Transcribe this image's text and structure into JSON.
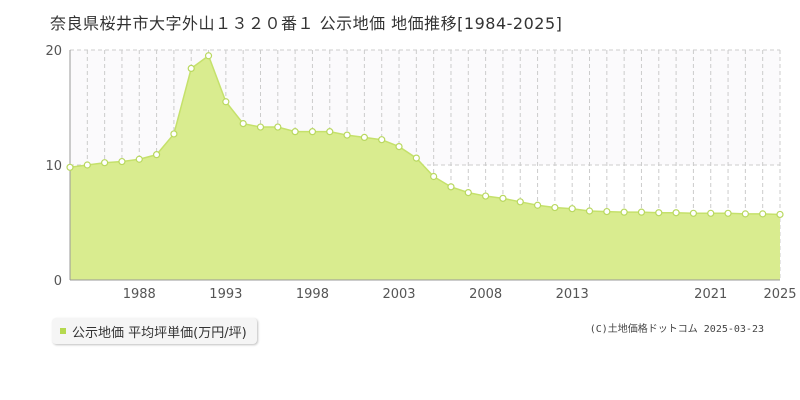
{
  "title": "奈良県桜井市大字外山１３２０番１ 公示地価 地価推移[1984-2025]",
  "legend": {
    "label": "公示地価 平均坪単価(万円/坪)"
  },
  "credit": "(C)土地価格ドットコム 2025-03-23",
  "colors": {
    "area_fill": "#d9ec8f",
    "line": "#c5e16b",
    "marker_fill": "#ffffff",
    "marker_stroke": "#b9d860",
    "grid": "#cccccc",
    "legend_swatch": "#b5d94f"
  },
  "chart_data": {
    "type": "area",
    "x": [
      1984,
      1985,
      1986,
      1987,
      1988,
      1989,
      1990,
      1991,
      1992,
      1993,
      1994,
      1995,
      1996,
      1997,
      1998,
      1999,
      2000,
      2001,
      2002,
      2003,
      2004,
      2005,
      2006,
      2007,
      2008,
      2009,
      2010,
      2011,
      2012,
      2013,
      2014,
      2015,
      2016,
      2017,
      2018,
      2019,
      2020,
      2021,
      2022,
      2023,
      2024,
      2025
    ],
    "series": [
      {
        "values": [
          9.8,
          10.0,
          10.2,
          10.3,
          10.5,
          10.9,
          12.7,
          18.4,
          19.5,
          15.5,
          13.6,
          13.3,
          13.3,
          12.9,
          12.9,
          12.9,
          12.6,
          12.4,
          12.2,
          11.6,
          10.6,
          9.0,
          8.1,
          7.6,
          7.3,
          7.1,
          6.8,
          6.5,
          6.3,
          6.2,
          6.0,
          5.95,
          5.9,
          5.9,
          5.85,
          5.85,
          5.8,
          5.8,
          5.8,
          5.75,
          5.75,
          5.7
        ]
      }
    ],
    "xticks": [
      "1988",
      "1993",
      "1998",
      "2003",
      "2008",
      "2013",
      "2021",
      "2025"
    ],
    "xtick_years": [
      1988,
      1993,
      1998,
      2003,
      2008,
      2013,
      2021,
      2025
    ],
    "yticks": [
      "0",
      "10",
      "20"
    ],
    "ytick_values": [
      0,
      10,
      20
    ],
    "ylim": [
      0,
      20
    ],
    "xlim": [
      1984,
      2025
    ],
    "grid": true
  }
}
